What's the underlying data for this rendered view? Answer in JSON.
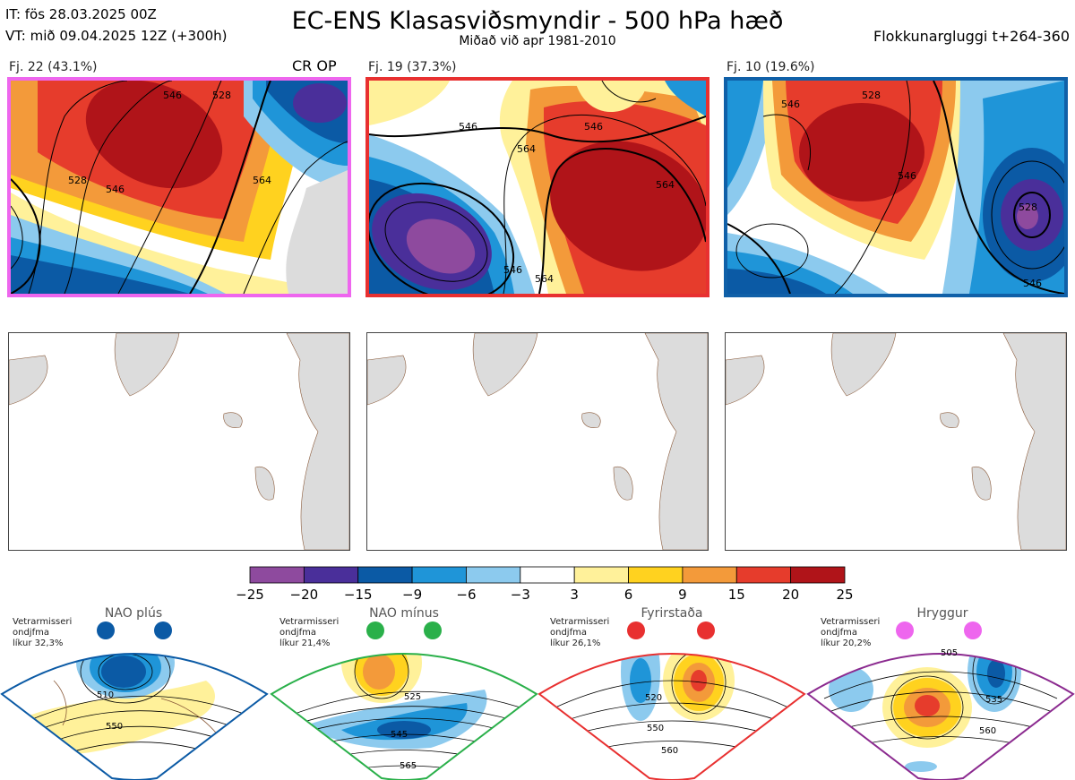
{
  "header": {
    "it_line": "IT: fös 28.03.2025 00Z",
    "vt_line": "VT: mið 09.04.2025 12Z  (+300h)",
    "title": "EC-ENS Klasasviðsmyndir - 500 hPa hæð",
    "subtitle": "Miðað við apr 1981-2010",
    "window": "Flokkunargluggi t+264-360"
  },
  "clusters": [
    {
      "label": "Fj. 22 (43.1%)",
      "tag": "CR OP",
      "border_color": "#ee66ee",
      "contours": [
        "546",
        "528",
        "528",
        "546",
        "564"
      ]
    },
    {
      "label": "Fj. 19 (37.3%)",
      "tag": "",
      "border_color": "#e83030",
      "contours": [
        "546",
        "564",
        "564",
        "546",
        "564",
        "546"
      ]
    },
    {
      "label": "Fj. 10 (19.6%)",
      "tag": "",
      "border_color": "#1060a8",
      "contours": [
        "528",
        "546",
        "546",
        "528",
        "546"
      ]
    }
  ],
  "colorbar": {
    "ticks": [
      "−25",
      "−20",
      "−15",
      "−9",
      "−6",
      "−3",
      "3",
      "6",
      "9",
      "15",
      "20",
      "25"
    ],
    "colors": [
      "#8e4a9e",
      "#4a2f9a",
      "#0b5aa5",
      "#1f95d8",
      "#8ccaee",
      "#ffffff",
      "#fff19a",
      "#ffd21f",
      "#f39a3a",
      "#e63c2c",
      "#b01419"
    ]
  },
  "chart_data": {
    "type": "heatmap",
    "title": "EC-ENS Klasasviðsmyndir - 500 hPa hæð",
    "variable": "500 hPa height anomaly",
    "reference_period": "apr 1981-2010",
    "clusters": [
      {
        "name": "Fj. 22",
        "members": 22,
        "percent": 43.1,
        "tag": "CR OP"
      },
      {
        "name": "Fj. 19",
        "members": 19,
        "percent": 37.3
      },
      {
        "name": "Fj. 10",
        "members": 10,
        "percent": 19.6
      }
    ],
    "colorbar_levels": [
      -25,
      -20,
      -15,
      -9,
      -6,
      -3,
      3,
      6,
      9,
      15,
      20,
      25
    ],
    "regimes": [
      {
        "name": "NAO plús",
        "line1": "Vetrarmisseri",
        "line2": "ondjfma",
        "line3": "líkur 32,3%",
        "probability": 32.3,
        "color": "#0b5aa5",
        "contours": [
          "510",
          "550"
        ]
      },
      {
        "name": "NAO mínus",
        "line1": "Vetrarmisseri",
        "line2": "ondjfma",
        "line3": "líkur 21,4%",
        "probability": 21.4,
        "color": "#2ab04a",
        "contours": [
          "525",
          "545",
          "565"
        ]
      },
      {
        "name": "Fyrirstaða",
        "line1": "Vetrarmisseri",
        "line2": "ondjfma",
        "line3": "líkur 26,1%",
        "probability": 26.1,
        "color": "#e83030",
        "contours": [
          "520",
          "550",
          "560"
        ]
      },
      {
        "name": "Hryggur",
        "line1": "Vetrarmisseri",
        "line2": "ondjfma",
        "line3": "líkur 20,2%",
        "probability": 20.2,
        "color": "#ee66ee",
        "contours": [
          "505",
          "535",
          "560"
        ]
      }
    ]
  }
}
